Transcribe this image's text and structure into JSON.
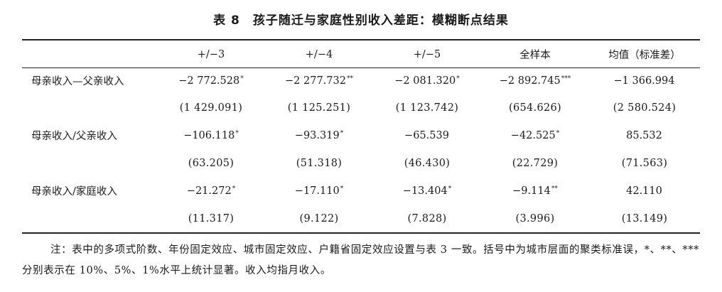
{
  "title": {
    "number": "表 8",
    "text": "孩子随迁与家庭性别收入差距：模糊断点结果"
  },
  "headers": [
    "",
    "+/−3",
    "+/−4",
    "+/−5",
    "全样本",
    "均值（标准差）"
  ],
  "rows": [
    {
      "label": "母亲收入—父亲收入",
      "coef": [
        "−2 772.528",
        "−2 277.732",
        "−2 081.320",
        "−2 892.745",
        "−1 366.994"
      ],
      "stars": [
        "*",
        "**",
        "*",
        "***",
        ""
      ],
      "se": [
        "(1 429.091)",
        "(1 125.251)",
        "(1 123.742)",
        "(654.626)",
        "(2 580.524)"
      ]
    },
    {
      "label": "母亲收入/父亲收入",
      "coef": [
        "−106.118",
        "−93.319",
        "−65.539",
        "−42.525",
        "85.532"
      ],
      "stars": [
        "*",
        "*",
        "",
        "*",
        ""
      ],
      "se": [
        "(63.205)",
        "(51.318)",
        "(46.430)",
        "(22.729)",
        "(71.563)"
      ]
    },
    {
      "label": "母亲收入/家庭收入",
      "coef": [
        "−21.272",
        "−17.110",
        "−13.404",
        "−9.114",
        "42.110"
      ],
      "stars": [
        "*",
        "*",
        "*",
        "**",
        ""
      ],
      "se": [
        "(11.317)",
        "(9.122)",
        "(7.828)",
        "(3.996)",
        "(13.149)"
      ]
    }
  ],
  "note": "注：表中的多项式阶数、年份固定效应、城市固定效应、户籍省固定效应设置与表 3 一致。括号中为城市层面的聚类标准误，*、**、***分别表示在 10%、5%、1%水平上统计显著。收入均指月收入。"
}
